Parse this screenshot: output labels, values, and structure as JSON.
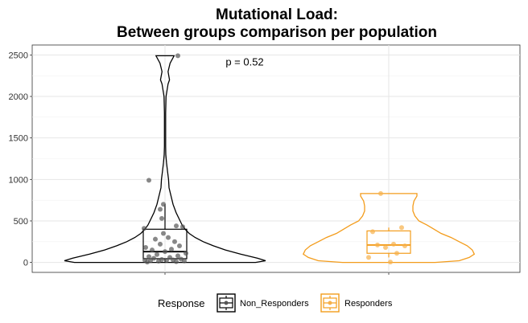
{
  "chart_data": {
    "type": "violin",
    "title_line1": "Mutational Load:",
    "title_line2": "Between groups comparison per population",
    "xlabel": "",
    "ylabel": "",
    "ylim": [
      -120,
      2620
    ],
    "yticks": [
      0,
      500,
      1000,
      1500,
      2000,
      2500
    ],
    "grid": true,
    "annotation": {
      "text": "p = 0.52",
      "x_group": 0.5,
      "y": 2420
    },
    "legend": {
      "title": "Response",
      "position": "bottom",
      "entries": [
        "Non_Responders",
        "Responders"
      ]
    },
    "groups": [
      {
        "name": "Non_Responders",
        "color": "#000000",
        "point_color": "#555555",
        "box": {
          "q1": 45,
          "median": 130,
          "q3": 400,
          "whisker_low": 0,
          "whisker_high": 700
        },
        "violin": {
          "y": [
            0,
            20,
            50,
            100,
            150,
            200,
            250,
            300,
            350,
            400,
            450,
            500,
            600,
            700,
            800,
            900,
            1000,
            1100,
            1200,
            1300,
            1400,
            1600,
            1800,
            2000,
            2150,
            2200,
            2300,
            2400,
            2490
          ],
          "width": [
            0.9,
            1.0,
            0.92,
            0.75,
            0.6,
            0.48,
            0.38,
            0.3,
            0.24,
            0.2,
            0.17,
            0.15,
            0.11,
            0.08,
            0.06,
            0.04,
            0.035,
            0.025,
            0.015,
            0.008,
            0.006,
            0.006,
            0.006,
            0.01,
            0.03,
            0.045,
            0.03,
            0.05,
            0.09
          ]
        },
        "points": [
          5,
          10,
          15,
          18,
          22,
          25,
          28,
          30,
          35,
          40,
          50,
          60,
          70,
          80,
          95,
          110,
          130,
          150,
          160,
          180,
          200,
          220,
          250,
          280,
          300,
          350,
          410,
          430,
          440,
          530,
          640,
          700,
          990,
          2490
        ]
      },
      {
        "name": "Responders",
        "color": "#F39C1B",
        "point_color": "#F6B04A",
        "box": {
          "q1": 110,
          "median": 210,
          "q3": 380,
          "whisker_low": 60,
          "whisker_high": 420
        },
        "violin": {
          "y": [
            0,
            20,
            60,
            100,
            150,
            200,
            250,
            300,
            350,
            400,
            450,
            500,
            560,
            620,
            680,
            740,
            800,
            830
          ],
          "width": [
            0.46,
            0.7,
            0.8,
            0.85,
            0.83,
            0.78,
            0.7,
            0.62,
            0.52,
            0.45,
            0.38,
            0.3,
            0.26,
            0.24,
            0.24,
            0.25,
            0.28,
            0.28
          ]
        },
        "points": [
          5,
          60,
          110,
          180,
          200,
          210,
          220,
          370,
          420,
          830
        ]
      }
    ]
  }
}
